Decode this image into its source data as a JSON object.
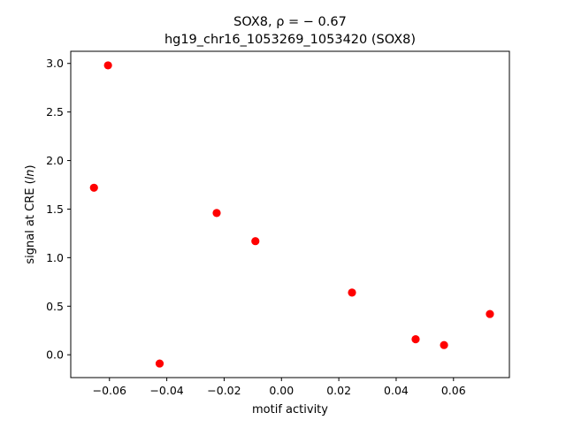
{
  "chart_data": {
    "type": "scatter",
    "title_line1": "SOX8, ρ = − 0.67",
    "title_line2": "hg19_chr16_1053269_1053420 (SOX8)",
    "xlabel": "motif activity",
    "ylabel_prefix": "signal at CRE (",
    "ylabel_italic": "ln",
    "ylabel_suffix": ")",
    "xlim": [
      -0.0735,
      0.0795
    ],
    "ylim": [
      -0.235,
      3.125
    ],
    "x_ticks": [
      -0.06,
      -0.04,
      -0.02,
      0.0,
      0.02,
      0.04,
      0.06
    ],
    "x_tick_labels": [
      "−0.06",
      "−0.04",
      "−0.02",
      "0.00",
      "0.02",
      "0.04",
      "0.06"
    ],
    "y_ticks": [
      0.0,
      0.5,
      1.0,
      1.5,
      2.0,
      2.5,
      3.0
    ],
    "y_tick_labels": [
      "0.0",
      "0.5",
      "1.0",
      "1.5",
      "2.0",
      "2.5",
      "3.0"
    ],
    "marker_color": "#ff0000",
    "grid": false,
    "points": [
      {
        "x": -0.0654,
        "y": 1.72
      },
      {
        "x": -0.0605,
        "y": 2.98
      },
      {
        "x": -0.0425,
        "y": -0.09
      },
      {
        "x": -0.0226,
        "y": 1.46
      },
      {
        "x": -0.0091,
        "y": 1.17
      },
      {
        "x": 0.0246,
        "y": 0.64
      },
      {
        "x": 0.0468,
        "y": 0.16
      },
      {
        "x": 0.0567,
        "y": 0.1
      },
      {
        "x": 0.0727,
        "y": 0.42
      }
    ]
  }
}
